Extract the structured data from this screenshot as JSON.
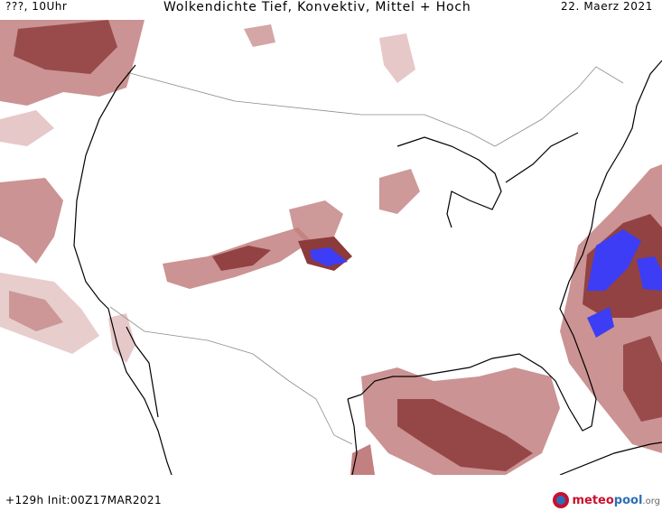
{
  "header": {
    "run_label": "???, 10Uhr",
    "title": "Wolkendichte  Tief, Konvektiv, Mittel + Hoch",
    "date": "22. Maerz 2021"
  },
  "footer": {
    "init_info": "+129h Init:00Z17MAR2021",
    "logo_meteo": "meteo",
    "logo_pool": "pool",
    "logo_org": ".org"
  },
  "colors": {
    "cloud_light": "#e6c8c8",
    "cloud_mid": "#c28080",
    "cloud_dark": "#8c3a3a",
    "cloud_densest": "#3d3df5",
    "coastline": "#000000",
    "borders": "#8c8c8c"
  }
}
